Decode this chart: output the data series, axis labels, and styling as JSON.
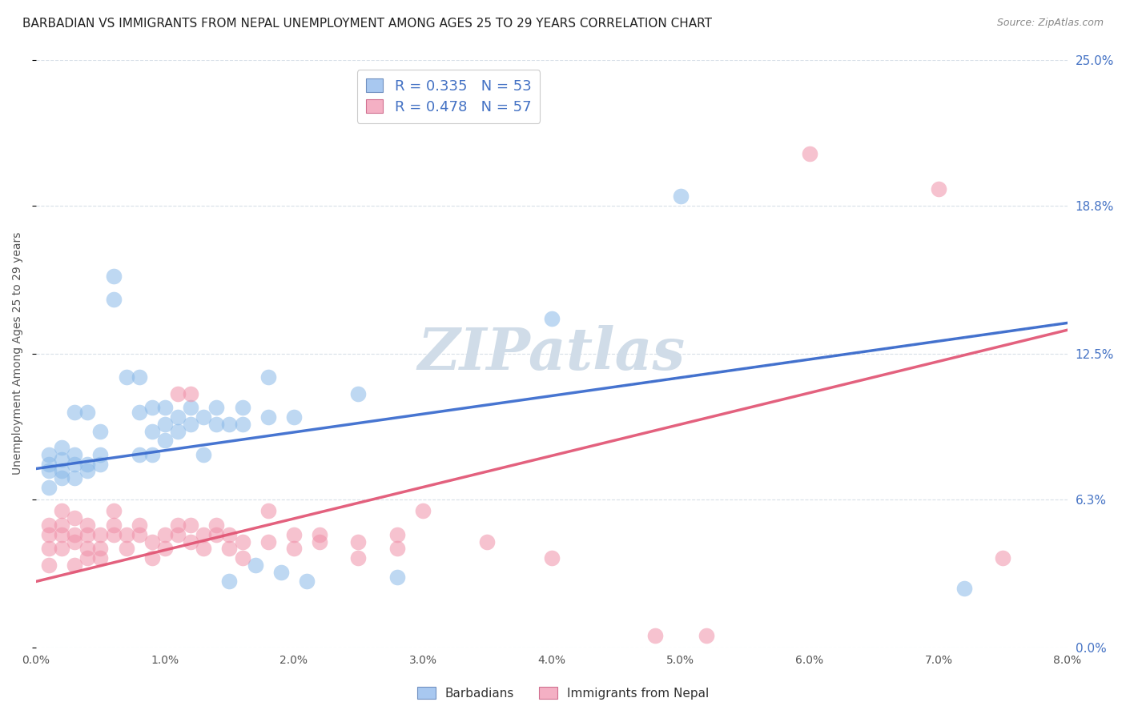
{
  "title": "BARBADIAN VS IMMIGRANTS FROM NEPAL UNEMPLOYMENT AMONG AGES 25 TO 29 YEARS CORRELATION CHART",
  "source": "Source: ZipAtlas.com",
  "ylabel": "Unemployment Among Ages 25 to 29 years",
  "xlabel_ticks": [
    "0.0%",
    "1.0%",
    "2.0%",
    "3.0%",
    "4.0%",
    "5.0%",
    "6.0%",
    "7.0%",
    "8.0%"
  ],
  "ylabel_ticks": [
    "0.0%",
    "6.3%",
    "12.5%",
    "18.8%",
    "25.0%"
  ],
  "xlim": [
    0.0,
    0.08
  ],
  "ylim": [
    0.0,
    0.25
  ],
  "ytick_vals": [
    0.0,
    0.063,
    0.125,
    0.188,
    0.25
  ],
  "xtick_vals": [
    0.0,
    0.01,
    0.02,
    0.03,
    0.04,
    0.05,
    0.06,
    0.07,
    0.08
  ],
  "watermark": "ZIPatlas",
  "barbadian_color": "#89b8e8",
  "nepal_color": "#f090a8",
  "barbadian_line_color": "#3366cc",
  "nepal_line_color": "#e05070",
  "barbadian_scatter": [
    [
      0.001,
      0.082
    ],
    [
      0.001,
      0.075
    ],
    [
      0.001,
      0.078
    ],
    [
      0.001,
      0.068
    ],
    [
      0.002,
      0.08
    ],
    [
      0.002,
      0.075
    ],
    [
      0.002,
      0.072
    ],
    [
      0.002,
      0.085
    ],
    [
      0.003,
      0.078
    ],
    [
      0.003,
      0.082
    ],
    [
      0.003,
      0.1
    ],
    [
      0.003,
      0.072
    ],
    [
      0.004,
      0.075
    ],
    [
      0.004,
      0.078
    ],
    [
      0.004,
      0.1
    ],
    [
      0.005,
      0.078
    ],
    [
      0.005,
      0.082
    ],
    [
      0.005,
      0.092
    ],
    [
      0.006,
      0.158
    ],
    [
      0.006,
      0.148
    ],
    [
      0.007,
      0.115
    ],
    [
      0.008,
      0.115
    ],
    [
      0.008,
      0.082
    ],
    [
      0.008,
      0.1
    ],
    [
      0.009,
      0.082
    ],
    [
      0.009,
      0.092
    ],
    [
      0.009,
      0.102
    ],
    [
      0.01,
      0.088
    ],
    [
      0.01,
      0.095
    ],
    [
      0.01,
      0.102
    ],
    [
      0.011,
      0.092
    ],
    [
      0.011,
      0.098
    ],
    [
      0.012,
      0.095
    ],
    [
      0.012,
      0.102
    ],
    [
      0.013,
      0.098
    ],
    [
      0.013,
      0.082
    ],
    [
      0.014,
      0.095
    ],
    [
      0.014,
      0.102
    ],
    [
      0.015,
      0.028
    ],
    [
      0.015,
      0.095
    ],
    [
      0.016,
      0.095
    ],
    [
      0.016,
      0.102
    ],
    [
      0.017,
      0.035
    ],
    [
      0.018,
      0.098
    ],
    [
      0.018,
      0.115
    ],
    [
      0.019,
      0.032
    ],
    [
      0.02,
      0.098
    ],
    [
      0.021,
      0.028
    ],
    [
      0.025,
      0.108
    ],
    [
      0.028,
      0.03
    ],
    [
      0.04,
      0.14
    ],
    [
      0.05,
      0.192
    ],
    [
      0.072,
      0.025
    ]
  ],
  "nepal_scatter": [
    [
      0.001,
      0.048
    ],
    [
      0.001,
      0.042
    ],
    [
      0.001,
      0.052
    ],
    [
      0.001,
      0.035
    ],
    [
      0.002,
      0.048
    ],
    [
      0.002,
      0.042
    ],
    [
      0.002,
      0.052
    ],
    [
      0.002,
      0.058
    ],
    [
      0.003,
      0.045
    ],
    [
      0.003,
      0.048
    ],
    [
      0.003,
      0.055
    ],
    [
      0.003,
      0.035
    ],
    [
      0.004,
      0.042
    ],
    [
      0.004,
      0.048
    ],
    [
      0.004,
      0.052
    ],
    [
      0.004,
      0.038
    ],
    [
      0.005,
      0.042
    ],
    [
      0.005,
      0.048
    ],
    [
      0.005,
      0.038
    ],
    [
      0.006,
      0.048
    ],
    [
      0.006,
      0.052
    ],
    [
      0.006,
      0.058
    ],
    [
      0.007,
      0.048
    ],
    [
      0.007,
      0.042
    ],
    [
      0.008,
      0.048
    ],
    [
      0.008,
      0.052
    ],
    [
      0.009,
      0.045
    ],
    [
      0.009,
      0.038
    ],
    [
      0.01,
      0.048
    ],
    [
      0.01,
      0.042
    ],
    [
      0.011,
      0.048
    ],
    [
      0.011,
      0.052
    ],
    [
      0.011,
      0.108
    ],
    [
      0.012,
      0.045
    ],
    [
      0.012,
      0.052
    ],
    [
      0.012,
      0.108
    ],
    [
      0.013,
      0.042
    ],
    [
      0.013,
      0.048
    ],
    [
      0.014,
      0.048
    ],
    [
      0.014,
      0.052
    ],
    [
      0.015,
      0.042
    ],
    [
      0.015,
      0.048
    ],
    [
      0.016,
      0.045
    ],
    [
      0.016,
      0.038
    ],
    [
      0.018,
      0.045
    ],
    [
      0.018,
      0.058
    ],
    [
      0.02,
      0.048
    ],
    [
      0.02,
      0.042
    ],
    [
      0.022,
      0.045
    ],
    [
      0.022,
      0.048
    ],
    [
      0.025,
      0.045
    ],
    [
      0.025,
      0.038
    ],
    [
      0.028,
      0.048
    ],
    [
      0.028,
      0.042
    ],
    [
      0.03,
      0.058
    ],
    [
      0.035,
      0.045
    ],
    [
      0.04,
      0.038
    ],
    [
      0.048,
      0.005
    ],
    [
      0.052,
      0.005
    ],
    [
      0.06,
      0.21
    ],
    [
      0.07,
      0.195
    ],
    [
      0.075,
      0.038
    ]
  ],
  "barbadian_line": {
    "x0": 0.0,
    "y0": 0.076,
    "x1": 0.08,
    "y1": 0.138
  },
  "nepal_line": {
    "x0": 0.0,
    "y0": 0.028,
    "x1": 0.08,
    "y1": 0.135
  },
  "background_color": "#ffffff",
  "grid_color": "#d8e0e8",
  "title_fontsize": 11,
  "axis_label_fontsize": 10,
  "tick_fontsize": 10,
  "watermark_color": "#d0dce8",
  "watermark_fontsize": 52,
  "right_tick_color": "#4472c4",
  "legend_R_color": "#4472c4",
  "legend_N_color": "#4472c4"
}
